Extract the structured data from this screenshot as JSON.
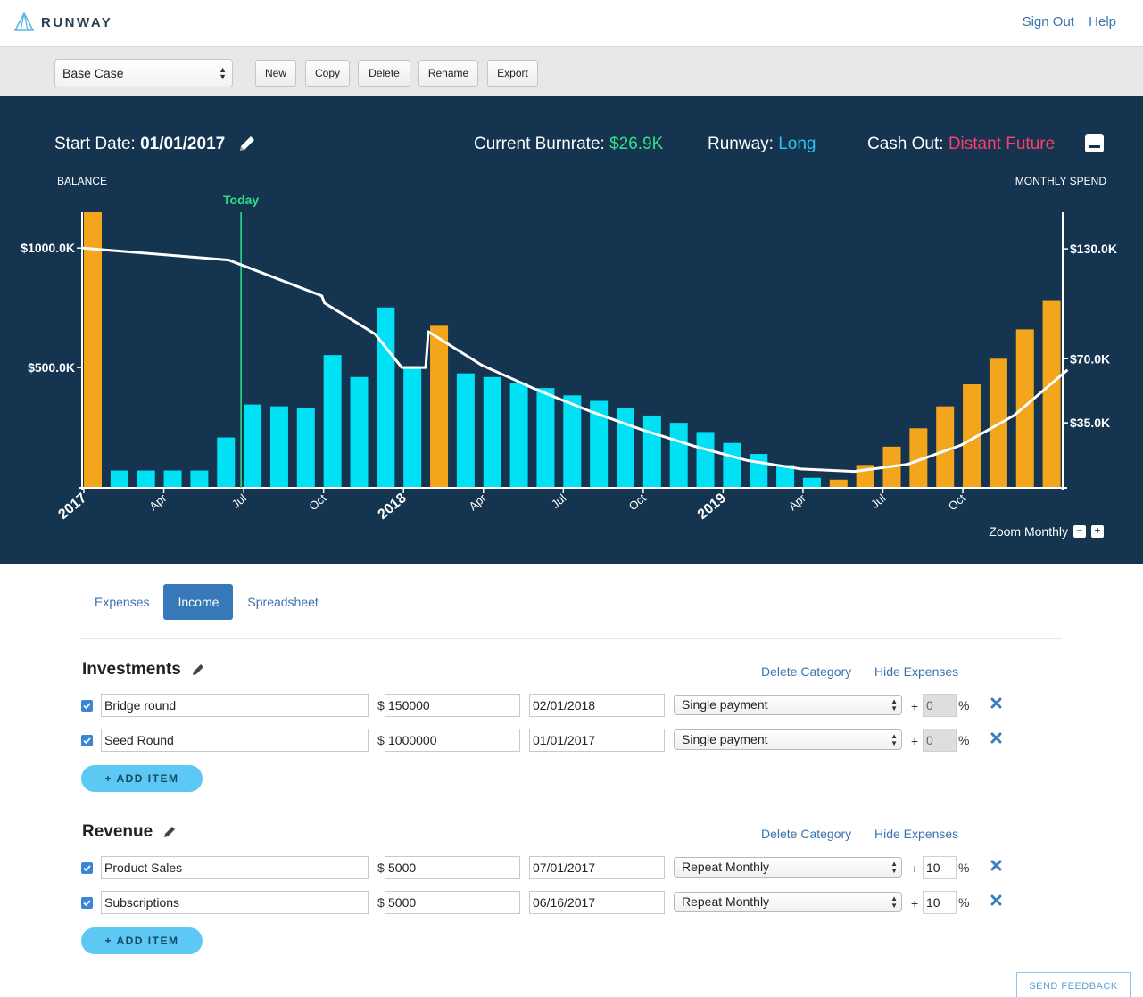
{
  "app": {
    "name": "RUNWAY"
  },
  "header": {
    "sign_out": "Sign Out",
    "help": "Help"
  },
  "toolbar": {
    "scenario": "Base Case",
    "new": "New",
    "copy": "Copy",
    "delete": "Delete",
    "rename": "Rename",
    "export": "Export"
  },
  "dashboard": {
    "start_date_label": "Start Date:",
    "start_date": "01/01/2017",
    "burnrate_label": "Current Burnrate:",
    "burnrate": "$26.9K",
    "runway_label": "Runway:",
    "runway": "Long",
    "cashout_label": "Cash Out:",
    "cashout": "Distant Future",
    "colors": {
      "background": "#14344f",
      "spend_bar": "#00e1f5",
      "income_bar": "#f3a61c",
      "balance_line": "#ffffff",
      "today_line": "#2ee08a",
      "burnrate": "#2ee08a",
      "runway": "#2ac5ee",
      "cashout": "#ff3c6c"
    },
    "zoom_label": "Zoom Monthly"
  },
  "chart_data": {
    "type": "bar",
    "left_axis_title": "BALANCE",
    "right_axis_title": "MONTHLY SPEND",
    "today_label": "Today",
    "left_ticks": [
      "$1000.0K",
      "$500.0K"
    ],
    "left_tick_values": [
      1000,
      500
    ],
    "right_ticks": [
      "$130.0K",
      "$70.0K",
      "$35.0K"
    ],
    "right_tick_values": [
      130,
      70,
      35
    ],
    "x_ticks": [
      "2017",
      "Apr",
      "Jul",
      "Oct",
      "2018",
      "Apr",
      "Jul",
      "Oct",
      "2019",
      "Apr",
      "Jul",
      "Oct"
    ],
    "x_tick_months": [
      0,
      3,
      6,
      9,
      12,
      15,
      18,
      21,
      24,
      27,
      30,
      33
    ],
    "today_month": 5.9,
    "ylim_left": [
      0,
      1150
    ],
    "ylim_right": [
      0,
      150
    ],
    "bars": [
      {
        "month": 0,
        "value": 150,
        "kind": "income"
      },
      {
        "month": 1,
        "value": 9,
        "kind": "spend"
      },
      {
        "month": 2,
        "value": 9,
        "kind": "spend"
      },
      {
        "month": 3,
        "value": 9,
        "kind": "spend"
      },
      {
        "month": 4,
        "value": 9,
        "kind": "spend"
      },
      {
        "month": 5,
        "value": 27,
        "kind": "spend"
      },
      {
        "month": 6,
        "value": 45,
        "kind": "spend"
      },
      {
        "month": 7,
        "value": 44,
        "kind": "spend"
      },
      {
        "month": 8,
        "value": 43,
        "kind": "spend"
      },
      {
        "month": 9,
        "value": 72,
        "kind": "spend"
      },
      {
        "month": 10,
        "value": 60,
        "kind": "spend"
      },
      {
        "month": 11,
        "value": 98,
        "kind": "spend"
      },
      {
        "month": 12,
        "value": 66,
        "kind": "spend"
      },
      {
        "month": 13,
        "value": 88,
        "kind": "income"
      },
      {
        "month": 14,
        "value": 62,
        "kind": "spend"
      },
      {
        "month": 15,
        "value": 60,
        "kind": "spend"
      },
      {
        "month": 16,
        "value": 57,
        "kind": "spend"
      },
      {
        "month": 17,
        "value": 54,
        "kind": "spend"
      },
      {
        "month": 18,
        "value": 50,
        "kind": "spend"
      },
      {
        "month": 19,
        "value": 47,
        "kind": "spend"
      },
      {
        "month": 20,
        "value": 43,
        "kind": "spend"
      },
      {
        "month": 21,
        "value": 39,
        "kind": "spend"
      },
      {
        "month": 22,
        "value": 35,
        "kind": "spend"
      },
      {
        "month": 23,
        "value": 30,
        "kind": "spend"
      },
      {
        "month": 24,
        "value": 24,
        "kind": "spend"
      },
      {
        "month": 25,
        "value": 18,
        "kind": "spend"
      },
      {
        "month": 26,
        "value": 12,
        "kind": "spend"
      },
      {
        "month": 27,
        "value": 5,
        "kind": "spend"
      },
      {
        "month": 28,
        "value": 4,
        "kind": "income"
      },
      {
        "month": 29,
        "value": 12,
        "kind": "income"
      },
      {
        "month": 30,
        "value": 22,
        "kind": "income"
      },
      {
        "month": 31,
        "value": 32,
        "kind": "income"
      },
      {
        "month": 32,
        "value": 44,
        "kind": "income"
      },
      {
        "month": 33,
        "value": 56,
        "kind": "income"
      },
      {
        "month": 34,
        "value": 70,
        "kind": "income"
      },
      {
        "month": 35,
        "value": 86,
        "kind": "income"
      },
      {
        "month": 36,
        "value": 102,
        "kind": "income"
      }
    ],
    "balance": [
      {
        "month": 0,
        "value": 1000
      },
      {
        "month": 5.5,
        "value": 950
      },
      {
        "month": 9,
        "value": 800
      },
      {
        "month": 9.1,
        "value": 770
      },
      {
        "month": 11,
        "value": 640
      },
      {
        "month": 12,
        "value": 500
      },
      {
        "month": 12.9,
        "value": 500
      },
      {
        "month": 13,
        "value": 650
      },
      {
        "month": 15,
        "value": 510
      },
      {
        "month": 17,
        "value": 410
      },
      {
        "month": 19,
        "value": 320
      },
      {
        "month": 21,
        "value": 240
      },
      {
        "month": 23,
        "value": 170
      },
      {
        "month": 25,
        "value": 110
      },
      {
        "month": 27,
        "value": 75
      },
      {
        "month": 29,
        "value": 65
      },
      {
        "month": 31,
        "value": 95
      },
      {
        "month": 33,
        "value": 175
      },
      {
        "month": 35,
        "value": 300
      },
      {
        "month": 37,
        "value": 490
      }
    ]
  },
  "tabs": [
    {
      "label": "Expenses",
      "active": false
    },
    {
      "label": "Income",
      "active": true
    },
    {
      "label": "Spreadsheet",
      "active": false
    }
  ],
  "categories": [
    {
      "title": "Investments",
      "delete_link": "Delete Category",
      "hide_link": "Hide Expenses",
      "add_label": "+ ADD ITEM",
      "items": [
        {
          "name": "Bridge round",
          "amount": "150000",
          "date": "02/01/2018",
          "frequency": "Single payment",
          "growth": "0",
          "growth_disabled": true
        },
        {
          "name": "Seed Round",
          "amount": "1000000",
          "date": "01/01/2017",
          "frequency": "Single payment",
          "growth": "0",
          "growth_disabled": true
        }
      ]
    },
    {
      "title": "Revenue",
      "delete_link": "Delete Category",
      "hide_link": "Hide Expenses",
      "add_label": "+ ADD ITEM",
      "items": [
        {
          "name": "Product Sales",
          "amount": "5000",
          "date": "07/01/2017",
          "frequency": "Repeat Monthly",
          "growth": "10",
          "growth_disabled": false
        },
        {
          "name": "Subscriptions",
          "amount": "5000",
          "date": "06/16/2017",
          "frequency": "Repeat Monthly",
          "growth": "10",
          "growth_disabled": false
        }
      ]
    }
  ],
  "feedback": "SEND FEEDBACK"
}
